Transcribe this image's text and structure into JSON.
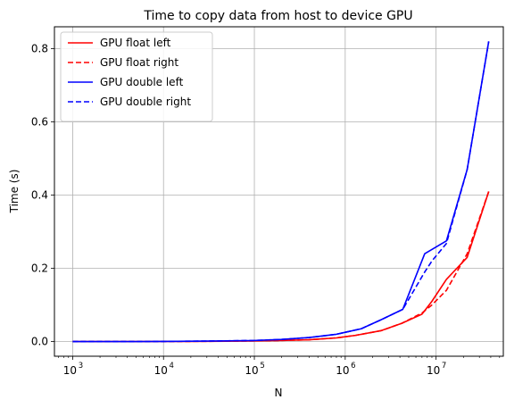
{
  "chart_data": {
    "type": "line",
    "title": "Time to copy data from host to device GPU",
    "xlabel": "N",
    "ylabel": "Time (s)",
    "xscale": "log",
    "xlim": [
      630,
      55000000
    ],
    "ylim": [
      -0.04,
      0.86
    ],
    "x_ticks": [
      {
        "value": 1000,
        "base": "10",
        "exp": "3"
      },
      {
        "value": 10000,
        "base": "10",
        "exp": "4"
      },
      {
        "value": 100000,
        "base": "10",
        "exp": "5"
      },
      {
        "value": 1000000,
        "base": "10",
        "exp": "6"
      },
      {
        "value": 10000000,
        "base": "10",
        "exp": "7"
      }
    ],
    "y_ticks": [
      {
        "value": 0.0,
        "label": "0.0"
      },
      {
        "value": 0.2,
        "label": "0.2"
      },
      {
        "value": 0.4,
        "label": "0.4"
      },
      {
        "value": 0.6,
        "label": "0.6"
      },
      {
        "value": 0.8,
        "label": "0.8"
      }
    ],
    "grid": true,
    "legend_position": "top-left",
    "series": [
      {
        "name": "GPU float left",
        "color": "#ff0000",
        "dash": "solid",
        "points": [
          [
            1000,
            0.0
          ],
          [
            2000,
            0.0
          ],
          [
            5000,
            0.0
          ],
          [
            10000,
            0.0003
          ],
          [
            20000,
            0.0005
          ],
          [
            50000,
            0.001
          ],
          [
            100000,
            0.002
          ],
          [
            200000,
            0.003
          ],
          [
            400000,
            0.005
          ],
          [
            800000,
            0.01
          ],
          [
            1300000,
            0.017
          ],
          [
            2500000,
            0.03
          ],
          [
            4200000,
            0.05
          ],
          [
            7000000,
            0.075
          ],
          [
            9000000,
            0.11
          ],
          [
            13000000,
            0.17
          ],
          [
            22000000,
            0.23
          ],
          [
            38000000,
            0.41
          ]
        ]
      },
      {
        "name": "GPU float right",
        "color": "#ff0000",
        "dash": "dashed",
        "points": [
          [
            1000,
            0.0
          ],
          [
            2000,
            0.0
          ],
          [
            5000,
            0.0
          ],
          [
            10000,
            0.0003
          ],
          [
            20000,
            0.0005
          ],
          [
            50000,
            0.001
          ],
          [
            100000,
            0.002
          ],
          [
            200000,
            0.003
          ],
          [
            400000,
            0.005
          ],
          [
            800000,
            0.01
          ],
          [
            1300000,
            0.017
          ],
          [
            2500000,
            0.03
          ],
          [
            4200000,
            0.05
          ],
          [
            7000000,
            0.078
          ],
          [
            9000000,
            0.1
          ],
          [
            13000000,
            0.14
          ],
          [
            22000000,
            0.24
          ],
          [
            38000000,
            0.41
          ]
        ]
      },
      {
        "name": "GPU double left",
        "color": "#0000ff",
        "dash": "solid",
        "points": [
          [
            1000,
            0.0
          ],
          [
            2000,
            0.0
          ],
          [
            5000,
            0.0
          ],
          [
            10000,
            0.0005
          ],
          [
            20000,
            0.001
          ],
          [
            50000,
            0.002
          ],
          [
            100000,
            0.003
          ],
          [
            200000,
            0.006
          ],
          [
            400000,
            0.011
          ],
          [
            800000,
            0.02
          ],
          [
            1500000,
            0.035
          ],
          [
            2500000,
            0.06
          ],
          [
            4300000,
            0.088
          ],
          [
            7500000,
            0.24
          ],
          [
            13000000,
            0.275
          ],
          [
            22000000,
            0.47
          ],
          [
            38000000,
            0.82
          ]
        ]
      },
      {
        "name": "GPU double right",
        "color": "#0000ff",
        "dash": "dashed",
        "points": [
          [
            1000,
            0.0
          ],
          [
            2000,
            0.0
          ],
          [
            5000,
            0.0
          ],
          [
            10000,
            0.0005
          ],
          [
            20000,
            0.001
          ],
          [
            50000,
            0.002
          ],
          [
            100000,
            0.003
          ],
          [
            200000,
            0.006
          ],
          [
            400000,
            0.011
          ],
          [
            800000,
            0.02
          ],
          [
            1500000,
            0.035
          ],
          [
            2500000,
            0.06
          ],
          [
            4300000,
            0.088
          ],
          [
            7500000,
            0.19
          ],
          [
            9000000,
            0.22
          ],
          [
            13000000,
            0.268
          ],
          [
            22000000,
            0.47
          ],
          [
            38000000,
            0.82
          ]
        ]
      }
    ]
  }
}
